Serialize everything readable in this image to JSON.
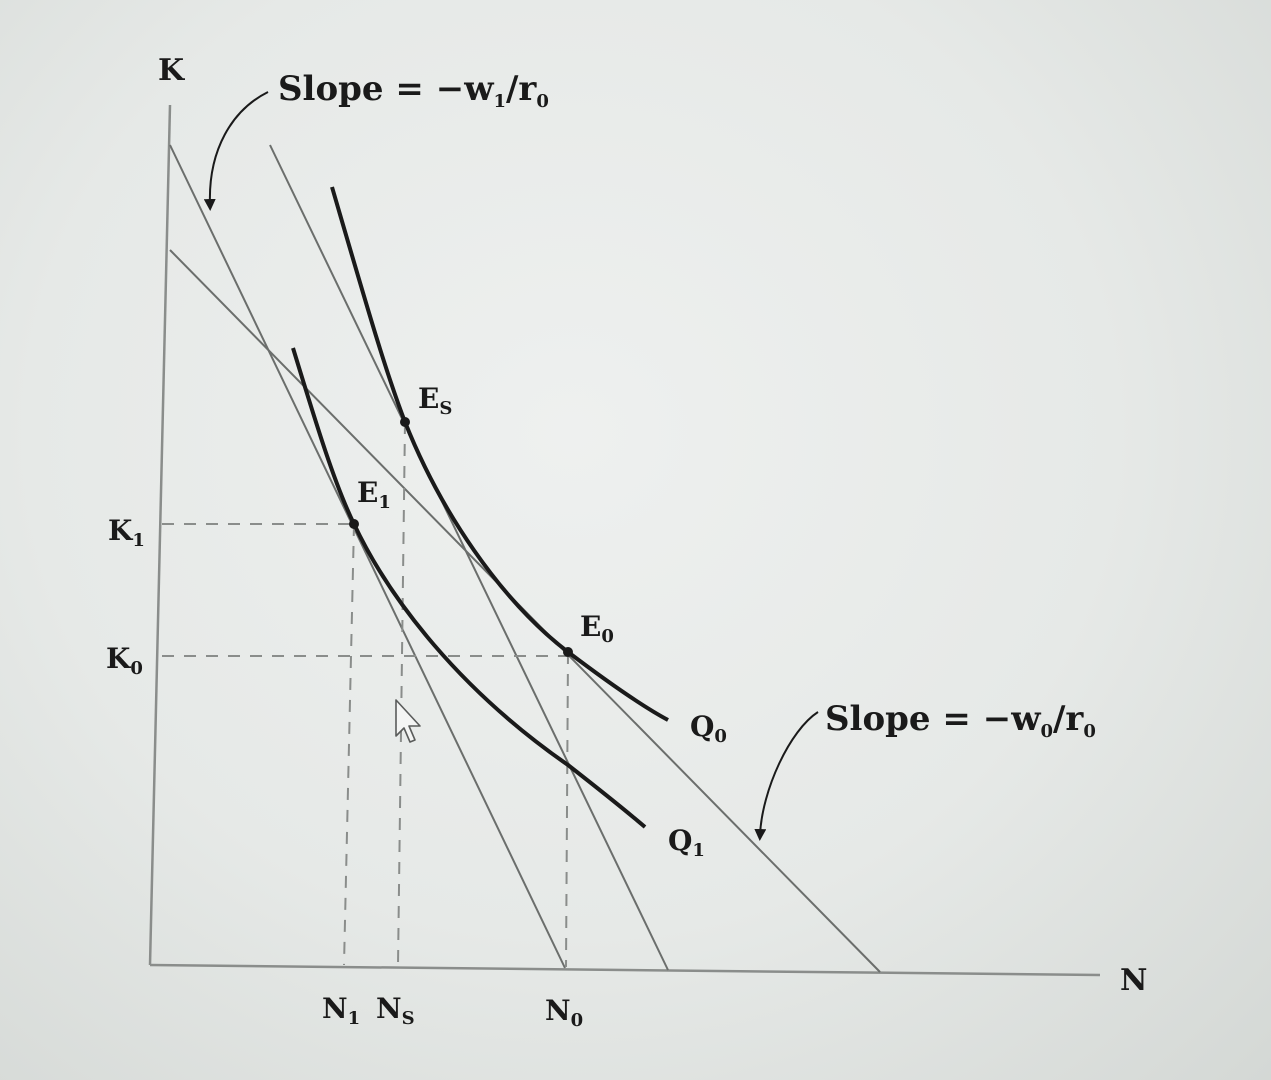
{
  "diagram": {
    "axes": {
      "y_label": "K",
      "x_label": "N"
    },
    "y_ticks": [
      {
        "id": "K1",
        "base": "K",
        "sub": "1"
      },
      {
        "id": "K0",
        "base": "K",
        "sub": "0"
      }
    ],
    "x_ticks": [
      {
        "id": "N1",
        "base": "N",
        "sub": "1"
      },
      {
        "id": "Ns",
        "base": "N",
        "sub": "S"
      },
      {
        "id": "N0",
        "base": "N",
        "sub": "0"
      }
    ],
    "points": [
      {
        "id": "Es",
        "base": "E",
        "sub": "S"
      },
      {
        "id": "E1",
        "base": "E",
        "sub": "1"
      },
      {
        "id": "E0",
        "base": "E",
        "sub": "0"
      }
    ],
    "curves": [
      {
        "id": "Q0",
        "base": "Q",
        "sub": "0"
      },
      {
        "id": "Q1",
        "base": "Q",
        "sub": "1"
      }
    ],
    "annotations": {
      "slope_top": {
        "prefix": "Slope = −w",
        "sub1": "1",
        "mid": "/r",
        "sub2": "0"
      },
      "slope_right": {
        "prefix": "Slope = −w",
        "sub1": "0",
        "mid": "/r",
        "sub2": "0"
      }
    },
    "colors": {
      "ink": "#1a1a1a",
      "thin_line": "#6b6e6c",
      "dashed": "#8a8d8b"
    }
  }
}
